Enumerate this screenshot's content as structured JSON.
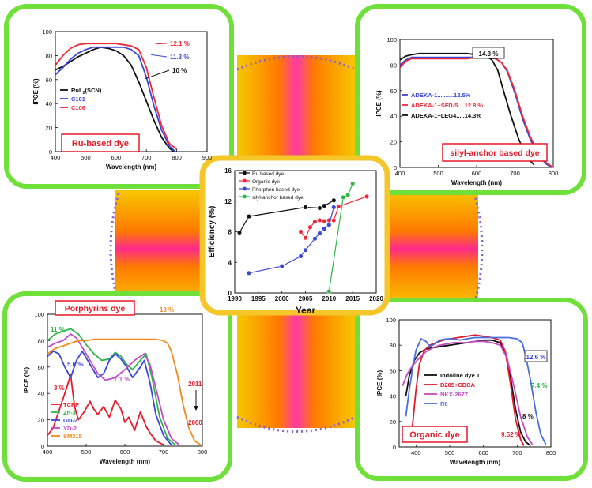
{
  "colors": {
    "frame_green": "#6fe03a",
    "center_frame": "#f5c62a",
    "dot_border": "#8a5fc8",
    "blob_outer": "#f6c800",
    "blob_mid": "#ff7a00",
    "blob_inner": "#ff3aa6",
    "blob_core": "#d8246c"
  },
  "chart_data": [
    {
      "id": "ru",
      "type": "line",
      "title": "Ru-based dye",
      "xlabel": "Wavelength (nm)",
      "ylabel": "IPCE (%)",
      "xlim": [
        400,
        900
      ],
      "ylim": [
        0,
        100
      ],
      "xticks": [
        400,
        500,
        600,
        700,
        800,
        900
      ],
      "yticks": [
        0,
        20,
        40,
        60,
        80,
        100
      ],
      "series": [
        {
          "name": "RuL2(SCN)",
          "label_main": "RuL",
          "label_sub": "2",
          "label_tail": "(SCN)",
          "color": "#111111",
          "x": [
            400,
            425,
            450,
            475,
            500,
            525,
            550,
            575,
            600,
            625,
            650,
            675,
            700,
            725,
            750,
            775,
            790
          ],
          "y": [
            68,
            71,
            75,
            79,
            82,
            85,
            87,
            86,
            84,
            80,
            72,
            58,
            42,
            26,
            12,
            3,
            0
          ]
        },
        {
          "name": "C101",
          "color": "#3b47d6",
          "x": [
            400,
            425,
            450,
            475,
            500,
            525,
            550,
            575,
            600,
            625,
            650,
            675,
            700,
            725,
            750,
            775,
            795
          ],
          "y": [
            64,
            70,
            77,
            82,
            85,
            87,
            87,
            87,
            87,
            87,
            85,
            80,
            62,
            38,
            18,
            5,
            0
          ]
        },
        {
          "name": "C106",
          "color": "#ee2a3a",
          "x": [
            400,
            425,
            450,
            475,
            500,
            525,
            550,
            575,
            600,
            625,
            650,
            675,
            700,
            725,
            750,
            775,
            800
          ],
          "y": [
            72,
            80,
            86,
            89,
            90,
            90,
            90,
            90,
            90,
            89,
            88,
            85,
            70,
            45,
            22,
            7,
            2
          ]
        }
      ],
      "annotations": [
        {
          "text": "12.1 %",
          "color": "#ee2a3a"
        },
        {
          "text": "11.3 %",
          "color": "#3b47d6"
        },
        {
          "text": "10 %",
          "color": "#111111"
        }
      ]
    },
    {
      "id": "silyl",
      "type": "line",
      "title": "silyl-anchor based dye",
      "xlabel": "Wavelength (nm)",
      "ylabel": "IPCE (%)",
      "xlim": [
        400,
        800
      ],
      "ylim": [
        0,
        100
      ],
      "xticks": [
        400,
        500,
        600,
        700,
        800
      ],
      "yticks": [
        0,
        20,
        40,
        60,
        80,
        100
      ],
      "series": [
        {
          "name": "ADEKA-1..........12.5%",
          "color": "#3b47d6",
          "x": [
            400,
            415,
            430,
            450,
            475,
            500,
            525,
            550,
            575,
            600,
            625,
            650,
            665,
            680,
            700,
            720,
            740,
            760,
            780,
            795
          ],
          "y": [
            80,
            84,
            86,
            86,
            86,
            86,
            86,
            86,
            86,
            86,
            86,
            85,
            82,
            75,
            58,
            38,
            22,
            10,
            3,
            0
          ]
        },
        {
          "name": "ADEKA-1+SFD-5....12.8 %",
          "color": "#ee2a3a",
          "x": [
            400,
            415,
            430,
            450,
            475,
            500,
            525,
            550,
            575,
            600,
            625,
            650,
            665,
            680,
            700,
            720,
            740,
            760,
            780,
            800
          ],
          "y": [
            78,
            83,
            85,
            85,
            85,
            85,
            85,
            85,
            85,
            86,
            86,
            85,
            82,
            76,
            60,
            40,
            24,
            12,
            4,
            0
          ]
        },
        {
          "name": "ADEKA-1+LEG4.....14.3%",
          "color": "#111111",
          "x": [
            400,
            415,
            430,
            450,
            475,
            500,
            525,
            550,
            575,
            600,
            625,
            640,
            655,
            670,
            690,
            710,
            730,
            750
          ],
          "y": [
            84,
            87,
            88,
            89,
            89,
            89,
            89,
            89,
            89,
            88,
            87,
            84,
            76,
            60,
            40,
            22,
            8,
            2
          ]
        }
      ],
      "annotations": [
        {
          "text": "14.3 %",
          "color": "#111111"
        }
      ]
    },
    {
      "id": "efficiency",
      "type": "scatter",
      "title": "",
      "xlabel": "Year",
      "ylabel": "Efficiency (%)",
      "xlim": [
        1990,
        2020
      ],
      "ylim": [
        0,
        16
      ],
      "xticks": [
        1990,
        1995,
        2000,
        2005,
        2010,
        2015,
        2020
      ],
      "yticks": [
        0,
        4,
        8,
        12,
        16
      ],
      "series": [
        {
          "name": "Ru based dye",
          "color": "#111111",
          "x": [
            1991,
            1993,
            2005,
            2008,
            2009,
            2011
          ],
          "y": [
            7.9,
            10,
            11.2,
            11.1,
            11.4,
            12.1
          ]
        },
        {
          "name": "Organic dye",
          "color": "#ee2a3a",
          "x": [
            2004,
            2005,
            2006,
            2007,
            2008,
            2009,
            2010,
            2011,
            2012,
            2018
          ],
          "y": [
            8,
            7.2,
            8.6,
            9.3,
            9.5,
            9.4,
            9.5,
            9.5,
            11.3,
            12.6
          ]
        },
        {
          "name": "Phorphrin based dye",
          "color": "#3b47d6",
          "x": [
            1993,
            2000,
            2004,
            2005,
            2007,
            2008,
            2009,
            2010,
            2011
          ],
          "y": [
            2.6,
            3.5,
            4.8,
            5.6,
            7.1,
            7.8,
            8.4,
            8.9,
            11.2
          ]
        },
        {
          "name": "silyl-anchor based dye",
          "color": "#2fb84a",
          "x": [
            2010,
            2013,
            2014,
            2015
          ],
          "y": [
            0.2,
            12.5,
            12.8,
            14.3
          ]
        }
      ]
    },
    {
      "id": "porphyrin",
      "type": "line",
      "title": "Porphyrins dye",
      "xlabel": "Wavelength (nm)",
      "ylabel": "IPCE (%)",
      "xlim": [
        400,
        800
      ],
      "ylim": [
        0,
        100
      ],
      "xticks": [
        400,
        500,
        600,
        700,
        800
      ],
      "yticks": [
        0,
        20,
        40,
        60,
        80,
        100
      ],
      "series": [
        {
          "name": "TCPP",
          "color": "#e51a2a",
          "x": [
            400,
            415,
            430,
            445,
            460,
            470,
            480,
            495,
            510,
            520,
            530,
            545,
            560,
            575,
            590,
            600,
            610,
            625,
            640,
            655,
            665,
            680,
            700
          ],
          "y": [
            8,
            14,
            27,
            40,
            54,
            30,
            20,
            26,
            34,
            28,
            24,
            30,
            22,
            35,
            28,
            18,
            22,
            12,
            26,
            15,
            10,
            4,
            1
          ]
        },
        {
          "name": "Zn-3",
          "color": "#2db44a",
          "x": [
            400,
            420,
            440,
            460,
            480,
            500,
            520,
            540,
            560,
            575,
            590,
            605,
            620,
            640,
            655,
            670,
            690,
            710,
            730
          ],
          "y": [
            80,
            85,
            87,
            89,
            85,
            77,
            70,
            65,
            66,
            71,
            68,
            62,
            58,
            65,
            70,
            52,
            22,
            6,
            1
          ]
        },
        {
          "name": "GD-2",
          "color": "#3b47d6",
          "x": [
            400,
            415,
            430,
            445,
            460,
            475,
            490,
            510,
            530,
            545,
            560,
            575,
            590,
            605,
            620,
            640,
            650,
            665,
            680,
            700,
            720
          ],
          "y": [
            68,
            72,
            70,
            60,
            52,
            65,
            72,
            62,
            52,
            55,
            65,
            70,
            66,
            60,
            52,
            60,
            65,
            48,
            24,
            8,
            1
          ]
        },
        {
          "name": "YD-2",
          "color": "#c64ac8",
          "x": [
            400,
            420,
            440,
            460,
            475,
            490,
            510,
            530,
            550,
            575,
            600,
            625,
            650,
            665,
            680,
            700,
            720,
            740
          ],
          "y": [
            75,
            78,
            80,
            85,
            82,
            75,
            65,
            55,
            50,
            52,
            58,
            65,
            70,
            62,
            44,
            20,
            6,
            1
          ]
        },
        {
          "name": "SM315",
          "color": "#f08a1e",
          "x": [
            400,
            420,
            440,
            460,
            480,
            500,
            520,
            540,
            560,
            580,
            600,
            620,
            640,
            660,
            680,
            700,
            710,
            720,
            735,
            750,
            765,
            780,
            795
          ],
          "y": [
            70,
            74,
            76,
            78,
            80,
            80,
            81,
            81,
            81,
            81,
            81,
            81,
            81,
            81,
            81,
            80,
            78,
            72,
            55,
            32,
            14,
            4,
            1
          ]
        }
      ],
      "annotations": [
        {
          "text": "11 %",
          "color": "#2db44a"
        },
        {
          "text": "13 %",
          "color": "#f08a1e"
        },
        {
          "text": "5.6 %",
          "color": "#3b47d6"
        },
        {
          "text": "7.1 %",
          "color": "#c64ac8"
        },
        {
          "text": "3 %",
          "color": "#e51a2a"
        },
        {
          "text": "2011",
          "color": "#e51a2a"
        },
        {
          "text": "2000",
          "color": "#e51a2a"
        }
      ]
    },
    {
      "id": "organic",
      "type": "line",
      "title": "Organic dye",
      "xlabel": "Wavelength (nm)",
      "ylabel": "IPCE (%)",
      "xlim": [
        350,
        800
      ],
      "ylim": [
        0,
        100
      ],
      "xticks": [
        400,
        500,
        600,
        700,
        800
      ],
      "yticks": [
        0,
        20,
        40,
        60,
        80,
        100
      ],
      "series": [
        {
          "name": "Indoline dye 1",
          "color": "#111111",
          "x": [
            370,
            380,
            395,
            410,
            430,
            450,
            475,
            500,
            525,
            550,
            575,
            600,
            625,
            650,
            665,
            680,
            695,
            710,
            725,
            740
          ],
          "y": [
            40,
            56,
            68,
            74,
            77,
            78,
            79,
            80,
            81,
            82,
            83,
            84,
            84,
            82,
            74,
            55,
            30,
            12,
            4,
            1
          ]
        },
        {
          "name": "D205+CDCA",
          "color": "#e51a2a",
          "x": [
            380,
            390,
            400,
            410,
            425,
            440,
            460,
            480,
            500,
            525,
            550,
            575,
            600,
            625,
            650,
            665,
            680,
            695,
            710,
            720
          ],
          "y": [
            8,
            18,
            45,
            65,
            76,
            80,
            82,
            84,
            85,
            86,
            87,
            88,
            87,
            86,
            84,
            75,
            50,
            22,
            6,
            1
          ]
        },
        {
          "name": "NKX-2677",
          "color": "#c64ac8",
          "x": [
            360,
            375,
            390,
            410,
            430,
            450,
            470,
            490,
            510,
            530,
            550,
            575,
            600,
            625,
            650,
            670,
            690,
            710,
            730,
            745
          ],
          "y": [
            48,
            58,
            64,
            70,
            75,
            78,
            80,
            81,
            82,
            82,
            82,
            83,
            83,
            82,
            80,
            70,
            48,
            24,
            8,
            2
          ]
        },
        {
          "name": "R6",
          "color": "#4a6ee0",
          "x": [
            370,
            380,
            390,
            400,
            415,
            430,
            440,
            450,
            470,
            490,
            510,
            530,
            550,
            575,
            600,
            625,
            650,
            675,
            700,
            715,
            725,
            740,
            755,
            770,
            785
          ],
          "y": [
            24,
            45,
            62,
            76,
            85,
            83,
            79,
            80,
            84,
            85,
            85,
            84,
            85,
            86,
            86,
            86,
            86,
            86,
            85,
            82,
            72,
            52,
            28,
            10,
            2
          ]
        }
      ],
      "annotations": [
        {
          "text": "12.6 %",
          "color": "#3b47d6"
        },
        {
          "text": "7.4 %",
          "color": "#2db44a"
        },
        {
          "text": "8 %",
          "color": "#111111"
        },
        {
          "text": "9.52 %",
          "color": "#e51a2a"
        }
      ]
    }
  ]
}
